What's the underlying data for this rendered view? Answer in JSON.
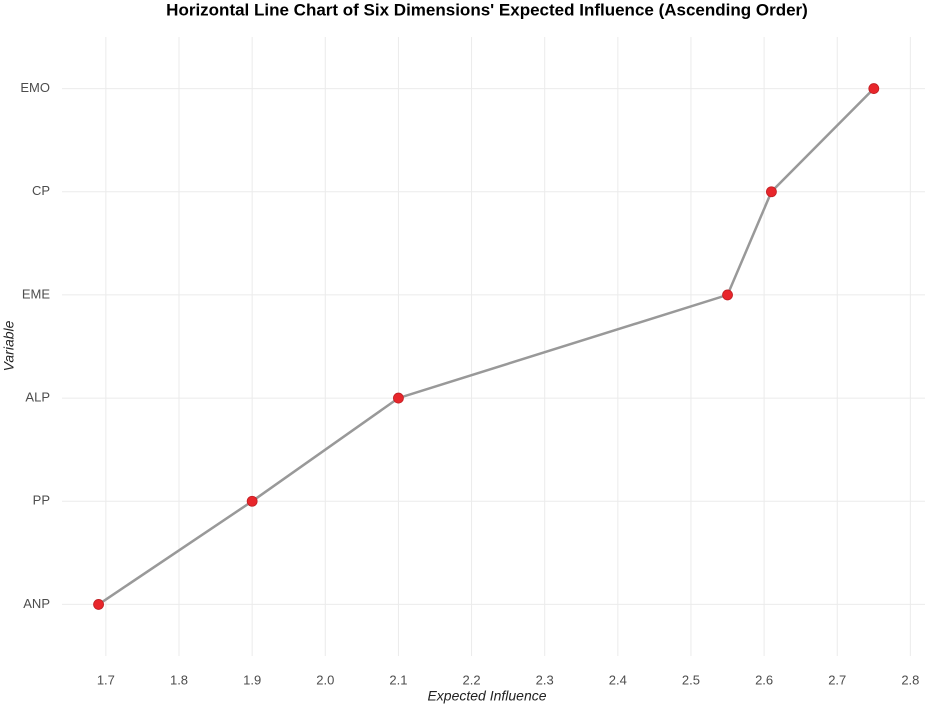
{
  "chart_data": {
    "type": "line",
    "title": "Horizontal Line Chart of Six Dimensions' Expected Influence (Ascending Order)",
    "xlabel": "Expected Influence",
    "ylabel": "Variable",
    "categories": [
      "ANP",
      "PP",
      "ALP",
      "EME",
      "CP",
      "EMO"
    ],
    "values": [
      1.69,
      1.9,
      2.1,
      2.55,
      2.61,
      2.75
    ],
    "line_color": "#999999",
    "marker_color": "#e8262b",
    "xlim": [
      1.64,
      2.82
    ],
    "xticks": [
      1.7,
      1.8,
      1.9,
      {
        "value": 2,
        "label": "2.0"
      },
      2.1,
      2.2,
      2.3,
      2.4,
      2.5,
      2.6,
      2.7,
      2.8
    ],
    "grid": true
  }
}
